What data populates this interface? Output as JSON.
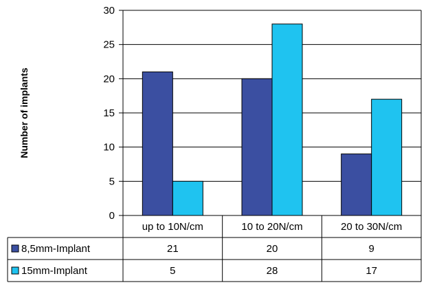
{
  "chart_data": {
    "type": "bar",
    "title": "",
    "xlabel": "",
    "ylabel": "Number of implants",
    "ylim": [
      0,
      30
    ],
    "yticks": [
      0,
      5,
      10,
      15,
      20,
      25,
      30
    ],
    "grid": true,
    "legend": "data-table",
    "categories": [
      "up to 10N/cm",
      "10 to 20N/cm",
      "20 to 30N/cm"
    ],
    "series": [
      {
        "name": "8,5mm-Implant",
        "color": "#3b4fa1",
        "values": [
          21,
          20,
          9
        ]
      },
      {
        "name": "15mm-Implant",
        "color": "#1fc3f0",
        "values": [
          5,
          28,
          17
        ]
      }
    ]
  }
}
